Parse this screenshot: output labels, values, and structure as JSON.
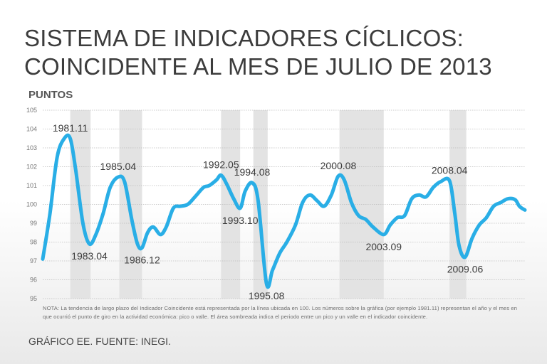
{
  "header": {
    "title_line1": "SISTEMA DE INDICADORES CÍCLICOS:",
    "title_line2": "COINCIDENTE AL MES DE JULIO DE 2013",
    "y_axis_label": "PUNTOS"
  },
  "footer": {
    "note": "NOTA: La tendencia de largo plazo del Indicador Coincidente está representada por la línea ubicada en 100. Los números sobre la gráfica (por ejemplo 1981.11) representan el año y el mes en que ocurrió el punto de giro en la actividad económica: pico o valle. El área sombreada indica el periodo entre un pico y un valle en el indicador coincidente.",
    "source": "GRÁFICO EE. FUENTE: INEGI."
  },
  "colors": {
    "line": "#29aee6",
    "shade": "#e3e3e3",
    "grid": "#bdbdbd",
    "text": "#3c3c3c"
  },
  "chart_data": {
    "type": "line",
    "title": "SISTEMA DE INDICADORES CÍCLICOS: COINCIDENTE AL MES DE JULIO DE 2013",
    "ylabel": "PUNTOS",
    "xlim": [
      1980.0,
      2013.583
    ],
    "ylim": [
      95,
      105
    ],
    "yticks": [
      95,
      96,
      97,
      98,
      99,
      100,
      101,
      102,
      103,
      104,
      105
    ],
    "grid": true,
    "series": [
      {
        "name": "Indicador Coincidente",
        "x": [
          1980.0,
          1980.5,
          1981.0,
          1981.5,
          1981.917,
          1982.3,
          1982.8,
          1983.25,
          1983.7,
          1984.2,
          1984.7,
          1985.25,
          1985.7,
          1986.2,
          1986.6,
          1986.917,
          1987.3,
          1987.7,
          1988.2,
          1988.6,
          1989.1,
          1989.6,
          1990.1,
          1990.6,
          1991.2,
          1991.6,
          1992.1,
          1992.417,
          1992.8,
          1993.3,
          1993.75,
          1994.1,
          1994.583,
          1995.0,
          1995.583,
          1996.0,
          1996.5,
          1997.0,
          1997.6,
          1998.1,
          1998.6,
          1999.1,
          1999.6,
          2000.1,
          2000.583,
          2001.0,
          2001.5,
          2002.0,
          2002.5,
          2003.0,
          2003.75,
          2004.2,
          2004.7,
          2005.2,
          2005.7,
          2006.2,
          2006.7,
          2007.2,
          2007.7,
          2008.333,
          2008.7,
          2009.0,
          2009.417,
          2009.9,
          2010.4,
          2010.9,
          2011.4,
          2011.9,
          2012.4,
          2012.9,
          2013.2,
          2013.583
        ],
        "values": [
          97.1,
          99.5,
          102.5,
          103.5,
          103.5,
          101.8,
          99.0,
          97.9,
          98.4,
          99.5,
          100.9,
          101.45,
          101.2,
          99.2,
          97.9,
          97.7,
          98.5,
          98.8,
          98.4,
          98.8,
          99.8,
          99.9,
          100.0,
          100.4,
          100.9,
          101.0,
          101.3,
          101.55,
          101.1,
          100.3,
          99.8,
          100.7,
          101.15,
          100.2,
          95.8,
          96.5,
          97.4,
          98.0,
          98.9,
          100.1,
          100.5,
          100.2,
          99.9,
          100.5,
          101.5,
          101.3,
          100.1,
          99.4,
          99.2,
          98.8,
          98.4,
          98.9,
          99.3,
          99.4,
          100.3,
          100.5,
          100.4,
          100.9,
          101.2,
          101.25,
          99.5,
          97.8,
          97.2,
          98.2,
          98.9,
          99.3,
          99.9,
          100.1,
          100.3,
          100.25,
          99.9,
          99.7
        ]
      }
    ],
    "shaded_periods": [
      {
        "start": 1981.917,
        "end": 1983.333
      },
      {
        "start": 1985.333,
        "end": 1986.917
      },
      {
        "start": 1992.417,
        "end": 1993.75
      },
      {
        "start": 1994.667,
        "end": 1995.667
      },
      {
        "start": 2000.667,
        "end": 2003.75
      },
      {
        "start": 2008.333,
        "end": 2009.5
      }
    ],
    "annotations": [
      {
        "text": "1981.11",
        "x": 1981.917,
        "y": 103.5,
        "position": "above"
      },
      {
        "text": "1983.04",
        "x": 1983.25,
        "y": 97.9,
        "position": "below"
      },
      {
        "text": "1985.04",
        "x": 1985.25,
        "y": 101.45,
        "position": "above"
      },
      {
        "text": "1986.12",
        "x": 1986.917,
        "y": 97.7,
        "position": "below"
      },
      {
        "text": "1992.05",
        "x": 1992.417,
        "y": 101.55,
        "position": "above"
      },
      {
        "text": "1993.10",
        "x": 1993.75,
        "y": 99.8,
        "position": "below"
      },
      {
        "text": "1994.08",
        "x": 1994.583,
        "y": 101.15,
        "position": "above"
      },
      {
        "text": "1995.08",
        "x": 1995.583,
        "y": 95.8,
        "position": "below"
      },
      {
        "text": "2000.08",
        "x": 2000.583,
        "y": 101.5,
        "position": "above"
      },
      {
        "text": "2003.09",
        "x": 2003.75,
        "y": 98.4,
        "position": "below"
      },
      {
        "text": "2008.04",
        "x": 2008.333,
        "y": 101.25,
        "position": "above"
      },
      {
        "text": "2009.06",
        "x": 2009.417,
        "y": 97.2,
        "position": "below"
      }
    ]
  }
}
